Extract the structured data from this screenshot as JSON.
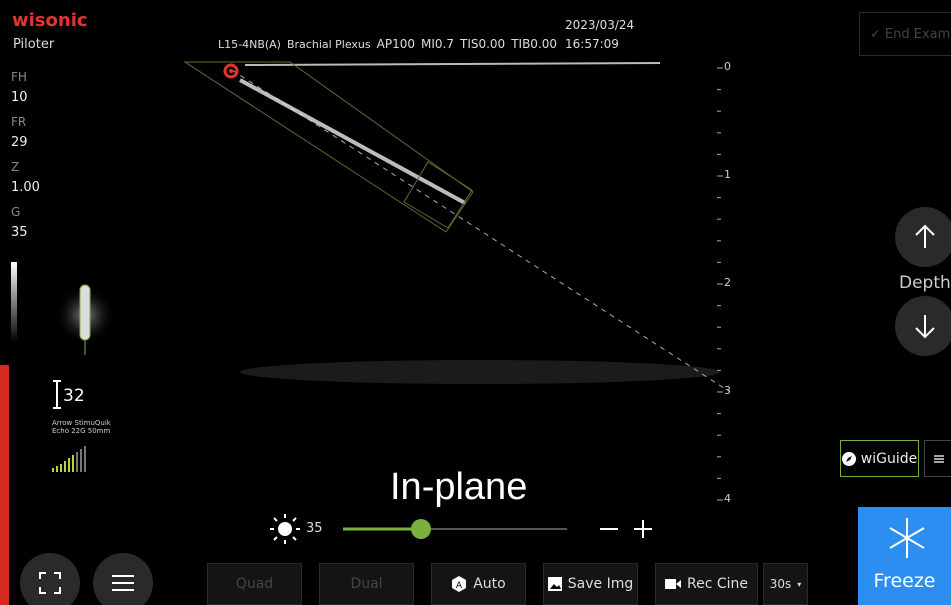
{
  "header": {
    "logo": "wisonic",
    "mode": "Piloter",
    "probe": "L15-4NB(A)",
    "preset": "Brachial Plexus",
    "ap": "AP100",
    "mi": "MI0.7",
    "tis": "TIS0.00",
    "tib": "TIB0.00",
    "date": "2023/03/24",
    "time": "16:57:09",
    "end_exam": "End Exam"
  },
  "params": [
    {
      "label": "FH",
      "value": "10"
    },
    {
      "label": "FR",
      "value": "29"
    },
    {
      "label": "Z",
      "value": "1.00"
    },
    {
      "label": "G",
      "value": "35"
    }
  ],
  "depth_scale": [
    "0",
    "1",
    "2",
    "3",
    "4"
  ],
  "depth_label": "Depth",
  "needle": {
    "angle": "32",
    "name": "Arrow StimuQuik",
    "spec": "Echo 22G 50mm"
  },
  "wiguide": "wiGuide",
  "overlay": "In-plane",
  "brightness": "35",
  "buttons": [
    "Quad",
    "Dual",
    "Auto",
    "Save Img",
    "Rec Cine",
    "30s"
  ],
  "freeze": "Freeze"
}
